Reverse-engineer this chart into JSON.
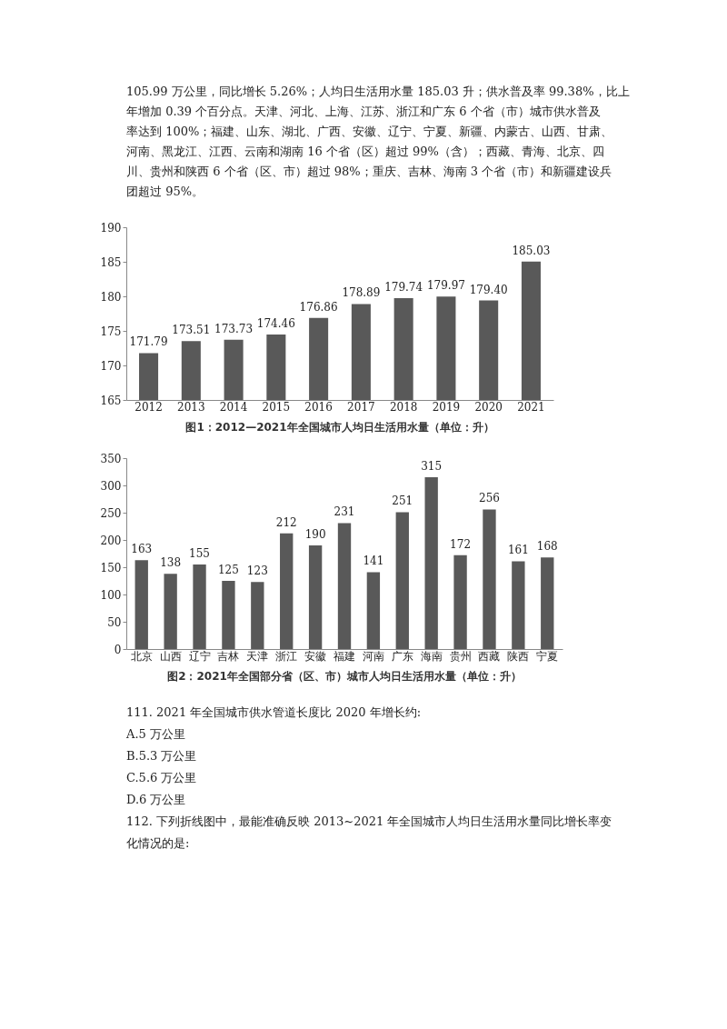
{
  "chart_data": [
    {
      "type": "bar",
      "title": "图1：2012—2021年全国城市人均日生活用水量（单位：升）",
      "annotations": [
        "105.99 万公里，同比增长 5.26%；人均日生活用水量 185.03 升；供水普及率 99.38%，比上",
        "年增加 0.39 个百分点。天津、河北、上海、江苏、浙江和广东 6 个省（市）城市供水普及",
        "率达到 100%；福建、山东、湖北、广西、安徽、辽宁、宁夏、新疆、内蒙古、山西、甘肃、",
        "河南、黑龙江、江西、云南和湖南 16 个省（区）超过 99%（含）；西藏、青海、北京、四",
        "川、贵州和陕西 6 个省（区、市）超过 98%；重庆、吉林、海南 3 个省（市）和新疆建设兵",
        "团超过 95%。"
      ],
      "categories": [
        "2012",
        "2013",
        "2014",
        "2015",
        "2016",
        "2017",
        "2018",
        "2019",
        "2020",
        "2021"
      ],
      "values": [
        171.79,
        173.51,
        173.73,
        174.46,
        176.86,
        178.89,
        179.74,
        179.97,
        179.4,
        185.03
      ],
      "value_labels": [
        "171.79",
        "173.51",
        "173.73",
        "174.46",
        "176.86",
        "178.89",
        "179.74",
        "179.97",
        "179.40",
        "185.03"
      ],
      "color": "#595959",
      "ylim": [
        165,
        190
      ],
      "yticks": [
        165,
        170,
        175,
        180,
        185,
        190
      ],
      "grid": false
    },
    {
      "type": "bar",
      "title": "图2：2021年全国部分省（区、市）城市人均日生活用水量（单位：升）",
      "annotations": [
        "111. 2021 年全国城市供水管道长度比 2020 年增长约:",
        "   A.5 万公里",
        "   B.5.3 万公里",
        "   C.5.6 万公里",
        "   D.6 万公里",
        "112. 下列折线图中，最能准确反映 2013~2021 年全国城市人均日生活用水量同比增长率变",
        "化情况的是:"
      ],
      "categories": [
        "北京",
        "山西",
        "辽宁",
        "吉林",
        "天津",
        "浙江",
        "安徽",
        "福建",
        "河南",
        "广东",
        "海南",
        "贵州",
        "西藏",
        "陕西",
        "宁夏"
      ],
      "values": [
        163,
        138,
        155,
        125,
        123,
        212,
        190,
        231,
        141,
        251,
        315,
        172,
        256,
        161,
        168
      ],
      "color": "#595959",
      "ylim": [
        0,
        350
      ],
      "yticks": [
        0,
        50,
        100,
        150,
        200,
        250,
        300,
        350
      ],
      "grid": false,
      "data_labels": true
    }
  ]
}
